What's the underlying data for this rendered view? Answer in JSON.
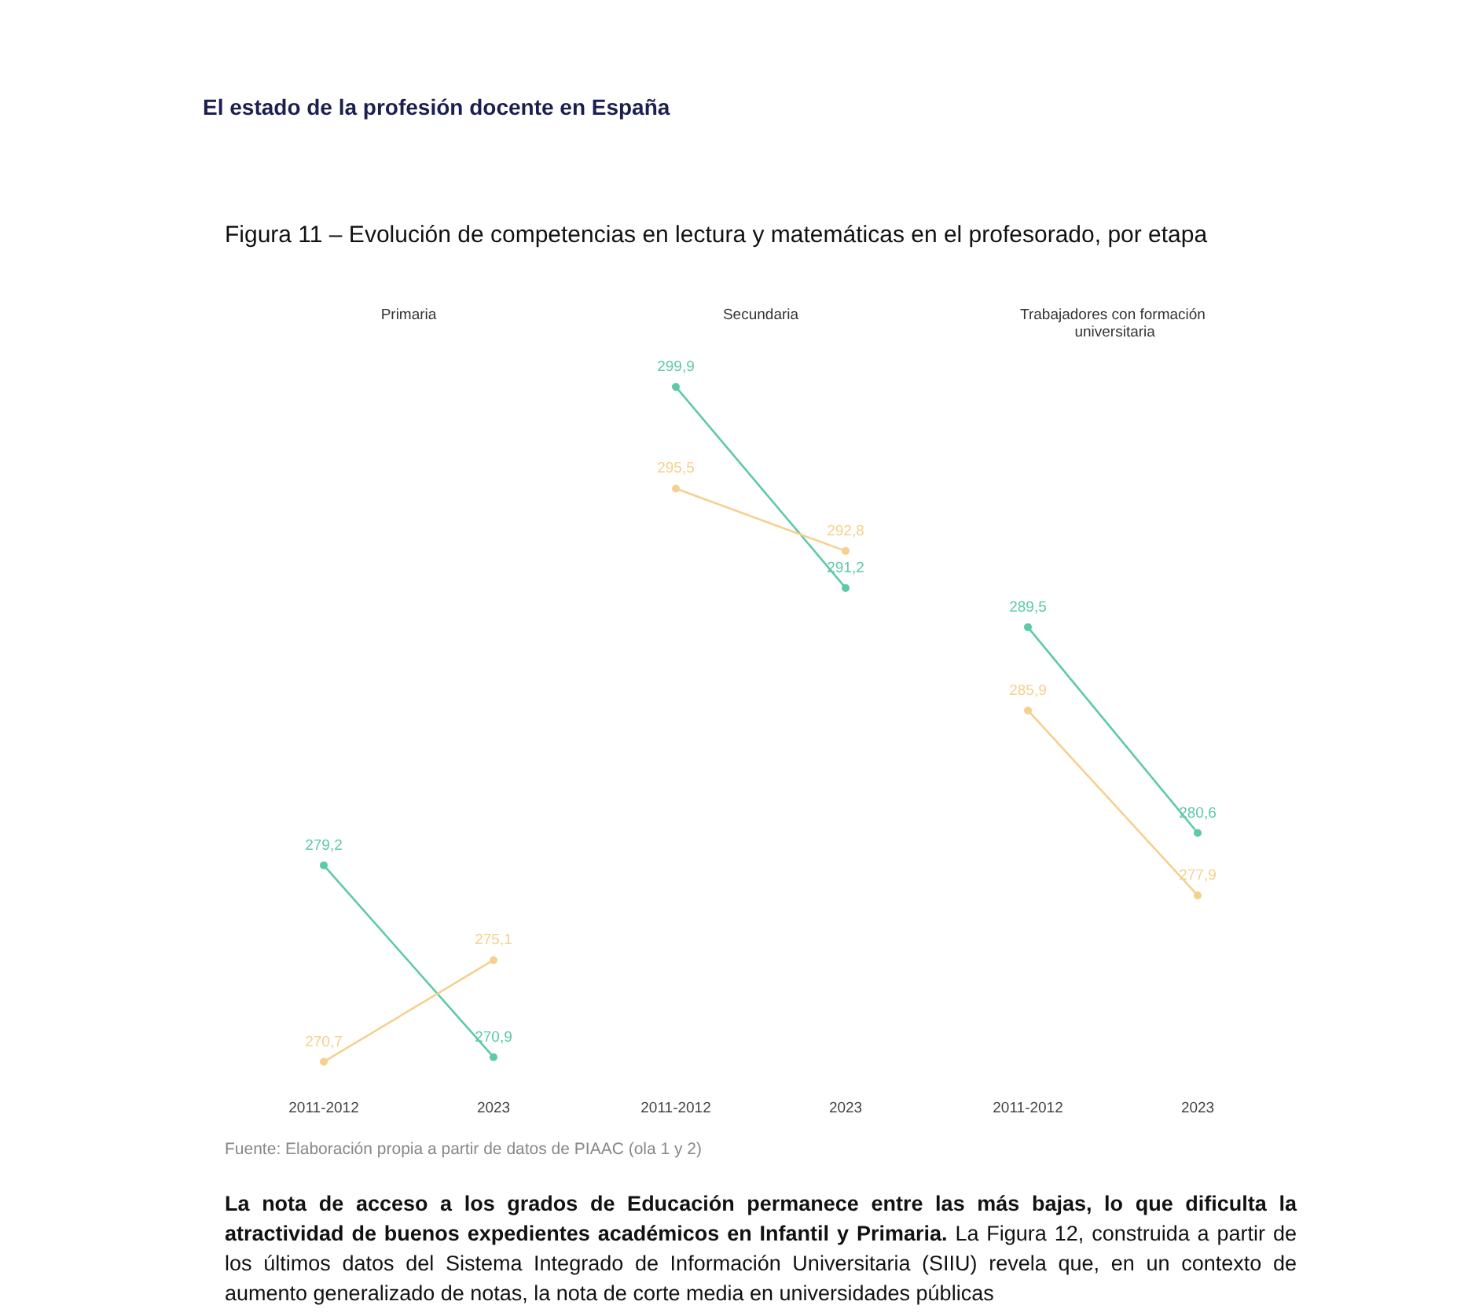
{
  "chart_data": [
    {
      "type": "other",
      "title": "Figura 11 – Evolución de competencias en lectura y matemáticas en el profesorado, por etapa",
      "annotations": [
        "El estado de la profesión docente en España"
      ]
    },
    {
      "type": "line",
      "title": "Primaria",
      "categories": [
        "2011-2012",
        "2023"
      ],
      "series": [
        {
          "color": "#5ccaa8",
          "values": [
            279.2,
            270.9
          ],
          "value_labels": [
            "279,2",
            "270,9"
          ]
        },
        {
          "color": "#f6d08e",
          "values": [
            270.7,
            275.1
          ],
          "value_labels": [
            "270,7",
            "275,1"
          ]
        }
      ],
      "tick_labels": "x",
      "marker": "circle"
    },
    {
      "type": "line",
      "title": "Secundaria",
      "categories": [
        "2011-2012",
        "2023"
      ],
      "series": [
        {
          "color": "#5ccaa8",
          "values": [
            299.9,
            291.2
          ],
          "value_labels": [
            "299,9",
            "291,2"
          ]
        },
        {
          "color": "#f6d08e",
          "values": [
            295.5,
            292.8
          ],
          "value_labels": [
            "295,5",
            "292,8"
          ]
        }
      ],
      "tick_labels": "x",
      "marker": "circle"
    },
    {
      "type": "line",
      "title": "Trabajadores con formación universitaria",
      "categories": [
        "2011-2012",
        "2023"
      ],
      "series": [
        {
          "color": "#5ccaa8",
          "values": [
            289.5,
            280.6
          ],
          "value_labels": [
            "289,5",
            "280,6"
          ]
        },
        {
          "color": "#f6d08e",
          "values": [
            285.9,
            277.9
          ],
          "value_labels": [
            "285,9",
            "277,9"
          ]
        }
      ],
      "tick_labels": "x",
      "marker": "circle"
    },
    {
      "type": "other",
      "annotations": [
        "Fuente: Elaboración propia a partir de datos de PIAAC (ola 1 y 2)",
        "La nota de acceso a los grados de Educación permanece entre las más bajas, lo que dificulta la atractividad de buenos expedientes académicos en Infantil y Primaria.",
        "La Figura 12, construida a partir de los últimos datos del Sistema Integrado de Información Universitaria (SIIU) revela que, en un contexto de aumento generalizado de notas, la nota de corte media en universidades públicas"
      ]
    }
  ]
}
